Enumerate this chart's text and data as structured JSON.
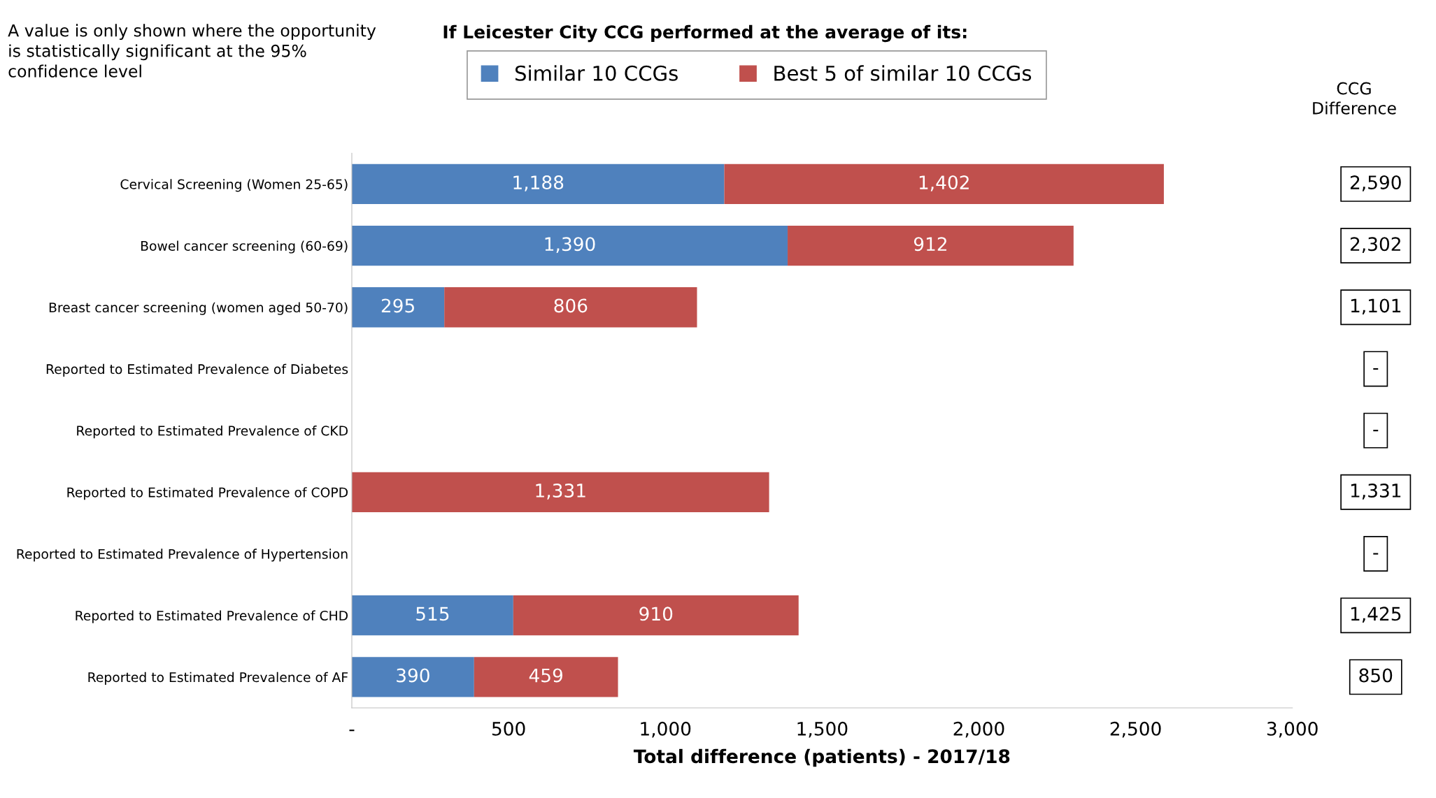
{
  "chart_data": {
    "type": "bar",
    "orientation": "horizontal",
    "stacked": true,
    "title": "If Leicester City CCG performed at the average of its:",
    "xlabel": "Total difference (patients) - 2017/18",
    "categories": [
      "Cervical Screening (Women 25-65)",
      "Bowel cancer screening (60-69)",
      "Breast cancer screening (women aged 50-70)",
      "Reported to Estimated Prevalence of Diabetes",
      "Reported to Estimated Prevalence of CKD",
      "Reported to Estimated Prevalence of COPD",
      "Reported to Estimated Prevalence of Hypertension",
      "Reported to Estimated Prevalence of CHD",
      "Reported to Estimated Prevalence of AF"
    ],
    "series": [
      {
        "name": "Similar 10 CCGs",
        "color": "#4f81bd",
        "values": [
          1188,
          1390,
          295,
          null,
          null,
          null,
          null,
          515,
          390
        ],
        "value_labels": [
          "1,188",
          "1,390",
          "295",
          null,
          null,
          null,
          null,
          "515",
          "390"
        ]
      },
      {
        "name": "Best 5 of similar 10 CCGs",
        "color": "#c0504d",
        "values": [
          1402,
          912,
          806,
          null,
          null,
          1331,
          null,
          910,
          459
        ],
        "value_labels": [
          "1,402",
          "912",
          "806",
          null,
          null,
          "1,331",
          null,
          "910",
          "459"
        ]
      }
    ],
    "xlim": [
      0,
      3000
    ],
    "xticks": [
      {
        "value": 0,
        "label": "-"
      },
      500,
      {
        "value": 1000,
        "label": "1,000"
      },
      {
        "value": 1500,
        "label": "1,500"
      },
      {
        "value": 2000,
        "label": "2,000"
      },
      {
        "value": 2500,
        "label": "2,500"
      },
      {
        "value": 3000,
        "label": "3,000"
      }
    ],
    "legend": "top",
    "grid": false,
    "annotations": [
      "A value is only shown where the opportunity is statistically significant at the 95% confidence level",
      "CCG Difference",
      "2,590",
      "2,302",
      "1,101",
      "-",
      "-",
      "1,331",
      "-",
      "1,425",
      "850"
    ]
  }
}
